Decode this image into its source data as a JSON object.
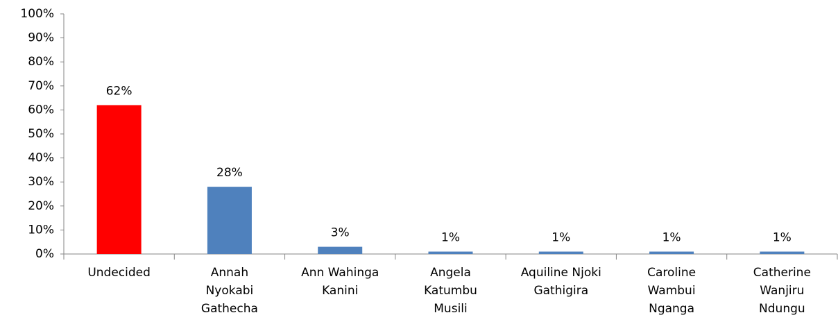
{
  "chart_data": {
    "type": "bar",
    "categories": [
      "Undecided",
      "Annah\nNyokabi\nGathecha",
      "Ann Wahinga\nKanini",
      "Angela\nKatumbu\nMusili",
      "Aquiline Njoki\nGathigira",
      "Caroline\nWambui\nNganga",
      "Catherine\nWanjiru\nNdungu"
    ],
    "values": [
      62,
      28,
      3,
      1,
      1,
      1,
      1
    ],
    "value_labels": [
      "62%",
      "28%",
      "3%",
      "1%",
      "1%",
      "1%",
      "1%"
    ],
    "colors": [
      "#ff0000",
      "#4f81bd",
      "#4f81bd",
      "#4f81bd",
      "#4f81bd",
      "#4f81bd",
      "#4f81bd"
    ],
    "ylim": [
      0,
      100
    ],
    "yticks": [
      {
        "value": 0,
        "label": "0%"
      },
      {
        "value": 10,
        "label": "10%"
      },
      {
        "value": 20,
        "label": "20%"
      },
      {
        "value": 30,
        "label": "30%"
      },
      {
        "value": 40,
        "label": "40%"
      },
      {
        "value": 50,
        "label": "50%"
      },
      {
        "value": 60,
        "label": "60%"
      },
      {
        "value": 70,
        "label": "70%"
      },
      {
        "value": 80,
        "label": "80%"
      },
      {
        "value": 90,
        "label": "90%"
      },
      {
        "value": 100,
        "label": "100%"
      }
    ]
  }
}
